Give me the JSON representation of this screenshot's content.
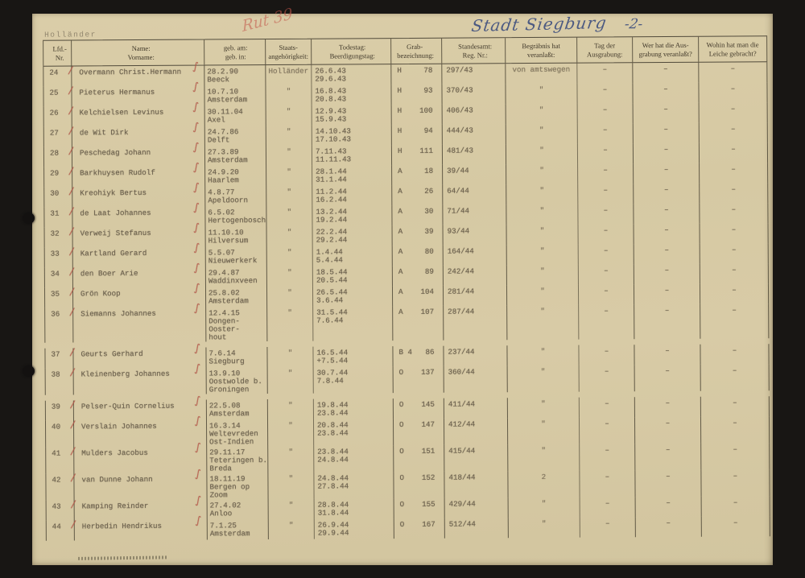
{
  "page": {
    "top_left_label": "Holländer",
    "red_scribble": "Rut 39",
    "handwritten_city": "Stadt Siegburg",
    "page_number": "-2-"
  },
  "table": {
    "headers": [
      [
        "Lfd.-",
        "Nr."
      ],
      [
        "Name:",
        "Vorname:"
      ],
      [
        "geb. am:",
        "geb. in:"
      ],
      [
        "Staats-",
        "angehörigkeit:"
      ],
      [
        "Todestag:",
        "Beerdigungstag:"
      ],
      [
        "Grab-",
        "bezeichnung:"
      ],
      [
        "Standesamt:",
        "Reg. Nr.:"
      ],
      [
        "Begräbnis hat",
        "veranlaßt:"
      ],
      [
        "Tag der",
        "Ausgrabung:"
      ],
      [
        "Wer hat die Aus-",
        "grabung veranlaßt?"
      ],
      [
        "Wohin hat man die",
        "Leiche gebracht?"
      ]
    ],
    "rows": [
      {
        "nr": "24",
        "name": "Overmann Christ.Hermann",
        "born": [
          "28.2.90",
          "Beeck"
        ],
        "nat": "Holländer",
        "dates": [
          "26.6.43",
          "29.6.43"
        ],
        "grave_l": "H",
        "grave_n": "78",
        "reg": "297/43",
        "arranged": "von amtswegen",
        "exh_day": "–",
        "exh_who": "–",
        "taken": "–"
      },
      {
        "nr": "25",
        "name": "Pieterus Hermanus",
        "born": [
          "10.7.10",
          "Amsterdam"
        ],
        "nat": "\"",
        "dates": [
          "16.8.43",
          "20.8.43"
        ],
        "grave_l": "H",
        "grave_n": "93",
        "reg": "370/43",
        "arranged": "\"",
        "exh_day": "–",
        "exh_who": "–",
        "taken": "–"
      },
      {
        "nr": "26",
        "name": "Kelchielsen Levinus",
        "born": [
          "30.11.04",
          "Axel"
        ],
        "nat": "\"",
        "dates": [
          "12.9.43",
          "15.9.43"
        ],
        "grave_l": "H",
        "grave_n": "100",
        "reg": "406/43",
        "arranged": "\"",
        "exh_day": "–",
        "exh_who": "–",
        "taken": "–"
      },
      {
        "nr": "27",
        "name": "de Wit Dirk",
        "born": [
          "24.7.86",
          "Delft"
        ],
        "nat": "\"",
        "dates": [
          "14.10.43",
          "17.10.43"
        ],
        "grave_l": "H",
        "grave_n": "94",
        "reg": "444/43",
        "arranged": "\"",
        "exh_day": "–",
        "exh_who": "–",
        "taken": "–"
      },
      {
        "nr": "28",
        "name": "Peschedag Johann",
        "born": [
          "27.3.89",
          "Amsterdam"
        ],
        "nat": "\"",
        "dates": [
          "7.11.43",
          "11.11.43"
        ],
        "grave_l": "H",
        "grave_n": "111",
        "reg": "481/43",
        "arranged": "\"",
        "exh_day": "–",
        "exh_who": "–",
        "taken": "–"
      },
      {
        "nr": "29",
        "name": "Barkhuysen Rudolf",
        "born": [
          "24.9.20",
          "Haarlem"
        ],
        "nat": "\"",
        "dates": [
          "28.1.44",
          "31.1.44"
        ],
        "grave_l": "A",
        "grave_n": "18",
        "reg": "39/44",
        "arranged": "\"",
        "exh_day": "–",
        "exh_who": "–",
        "taken": "–"
      },
      {
        "nr": "30",
        "name": "Kreohiyk Bertus",
        "born": [
          "4.8.77",
          "Apeldoorn"
        ],
        "nat": "\"",
        "dates": [
          "11.2.44",
          "16.2.44"
        ],
        "grave_l": "A",
        "grave_n": "26",
        "reg": "64/44",
        "arranged": "\"",
        "exh_day": "–",
        "exh_who": "–",
        "taken": "–"
      },
      {
        "nr": "31",
        "name": "de Laat Johannes",
        "born": [
          "6.5.02",
          "Hertogenbosch"
        ],
        "nat": "\"",
        "dates": [
          "13.2.44",
          "19.2.44"
        ],
        "grave_l": "A",
        "grave_n": "30",
        "reg": "71/44",
        "arranged": "\"",
        "exh_day": "–",
        "exh_who": "–",
        "taken": "–"
      },
      {
        "nr": "32",
        "name": "Verweij Stefanus",
        "born": [
          "11.10.10",
          "Hilversum"
        ],
        "nat": "\"",
        "dates": [
          "22.2.44",
          "29.2.44"
        ],
        "grave_l": "A",
        "grave_n": "39",
        "reg": "93/44",
        "arranged": "\"",
        "exh_day": "–",
        "exh_who": "–",
        "taken": "–"
      },
      {
        "nr": "33",
        "name": "Kartland Gerard",
        "born": [
          "5.5.07",
          "Nieuwerkerk"
        ],
        "nat": "\"",
        "dates": [
          "1.4.44",
          "5.4.44"
        ],
        "grave_l": "A",
        "grave_n": "80",
        "reg": "164/44",
        "arranged": "\"",
        "exh_day": "–",
        "exh_who": "–",
        "taken": "–"
      },
      {
        "nr": "34",
        "name": "den Boer Arie",
        "born": [
          "29.4.87",
          "Waddinxveen"
        ],
        "nat": "\"",
        "dates": [
          "18.5.44",
          "20.5.44"
        ],
        "grave_l": "A",
        "grave_n": "89",
        "reg": "242/44",
        "arranged": "\"",
        "exh_day": "–",
        "exh_who": "–",
        "taken": "–"
      },
      {
        "nr": "35",
        "name": "Grön Koop",
        "born": [
          "25.8.02",
          "Amsterdam"
        ],
        "nat": "\"",
        "dates": [
          "26.5.44",
          "3.6.44"
        ],
        "grave_l": "A",
        "grave_n": "104",
        "reg": "281/44",
        "arranged": "\"",
        "exh_day": "–",
        "exh_who": "–",
        "taken": "–"
      },
      {
        "nr": "36",
        "name": "Siemanns Johannes",
        "born": [
          "12.4.15",
          "Dongen-Ooster-",
          "hout"
        ],
        "nat": "\"",
        "dates": [
          "31.5.44",
          "7.6.44"
        ],
        "grave_l": "A",
        "grave_n": "107",
        "reg": "287/44",
        "arranged": "\"",
        "exh_day": "–",
        "exh_who": "–",
        "taken": "–"
      },
      {
        "nr": "37",
        "name": "Geurts Gerhard",
        "born": [
          "7.6.14",
          "Siegburg"
        ],
        "nat": "\"",
        "dates": [
          "16.5.44",
          "+7.5.44"
        ],
        "grave_l": "B 4",
        "grave_n": "86",
        "reg": "237/44",
        "arranged": "\"",
        "exh_day": "–",
        "exh_who": "–",
        "taken": "–",
        "gap": true
      },
      {
        "nr": "38",
        "name": "Kleinenberg Johannes",
        "born": [
          "13.9.10",
          "Oostwolde b.",
          "Groningen"
        ],
        "nat": "\"",
        "dates": [
          "30.7.44",
          "7.8.44"
        ],
        "grave_l": "O",
        "grave_n": "137",
        "reg": "360/44",
        "arranged": "\"",
        "exh_day": "–",
        "exh_who": "–",
        "taken": "–"
      },
      {
        "nr": "39",
        "name": "Pelser-Quin Cornelius",
        "born": [
          "22.5.08",
          "Amsterdam"
        ],
        "nat": "\"",
        "dates": [
          "19.8.44",
          "23.8.44"
        ],
        "grave_l": "O",
        "grave_n": "145",
        "reg": "411/44",
        "arranged": "\"",
        "exh_day": "–",
        "exh_who": "–",
        "taken": "–",
        "gap": true
      },
      {
        "nr": "40",
        "name": "Verslain Johannes",
        "born": [
          "16.3.14",
          "Weltevreden",
          "Ost-Indien"
        ],
        "nat": "\"",
        "dates": [
          "20.8.44",
          "23.8.44"
        ],
        "grave_l": "O",
        "grave_n": "147",
        "reg": "412/44",
        "arranged": "\"",
        "exh_day": "–",
        "exh_who": "–",
        "taken": "–"
      },
      {
        "nr": "41",
        "name": "Mulders Jacobus",
        "born": [
          "29.11.17",
          "Teteringen b.",
          "Breda"
        ],
        "nat": "\"",
        "dates": [
          "23.8.44",
          "24.8.44"
        ],
        "grave_l": "O",
        "grave_n": "151",
        "reg": "415/44",
        "arranged": "\"",
        "exh_day": "–",
        "exh_who": "–",
        "taken": "–"
      },
      {
        "nr": "42",
        "name": "van Dunne Johann",
        "born": [
          "18.11.19",
          "Bergen op Zoom"
        ],
        "nat": "\"",
        "dates": [
          "24.8.44",
          "27.8.44"
        ],
        "grave_l": "O",
        "grave_n": "152",
        "reg": "418/44",
        "arranged": "2",
        "exh_day": "–",
        "exh_who": "–",
        "taken": "–"
      },
      {
        "nr": "43",
        "name": "Kamping Reinder",
        "born": [
          "27.4.02",
          "Anloo"
        ],
        "nat": "\"",
        "dates": [
          "28.8.44",
          "31.8.44"
        ],
        "grave_l": "O",
        "grave_n": "155",
        "reg": "429/44",
        "arranged": "\"",
        "exh_day": "–",
        "exh_who": "–",
        "taken": "–"
      },
      {
        "nr": "44",
        "name": "Herbedin Hendrikus",
        "born": [
          "7.1.25",
          "Amsterdam"
        ],
        "nat": "\"",
        "dates": [
          "26.9.44",
          "29.9.44"
        ],
        "grave_l": "O",
        "grave_n": "167",
        "reg": "512/44",
        "arranged": "\"",
        "exh_day": "–",
        "exh_who": "–",
        "taken": "–"
      }
    ]
  }
}
